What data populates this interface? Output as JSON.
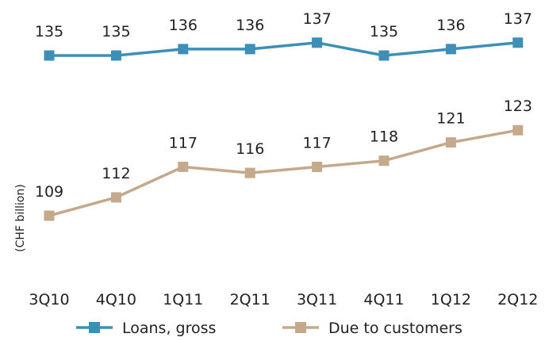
{
  "chart_data": {
    "type": "line",
    "title": "",
    "xlabel": "",
    "ylabel": "(CHF billion)",
    "categories": [
      "3Q10",
      "4Q10",
      "1Q11",
      "2Q11",
      "3Q11",
      "4Q11",
      "1Q12",
      "2Q12"
    ],
    "series": [
      {
        "name": "Loans, gross",
        "color": "#3d8fb8",
        "marker": "square",
        "values": [
          135,
          135,
          136,
          136,
          137,
          135,
          136,
          137
        ]
      },
      {
        "name": "Due to customers",
        "color": "#c4a98d",
        "marker": "square",
        "values": [
          109,
          112,
          117,
          116,
          117,
          118,
          121,
          123
        ]
      }
    ],
    "legend": "bottom",
    "grid": false,
    "axis_lines": false
  }
}
